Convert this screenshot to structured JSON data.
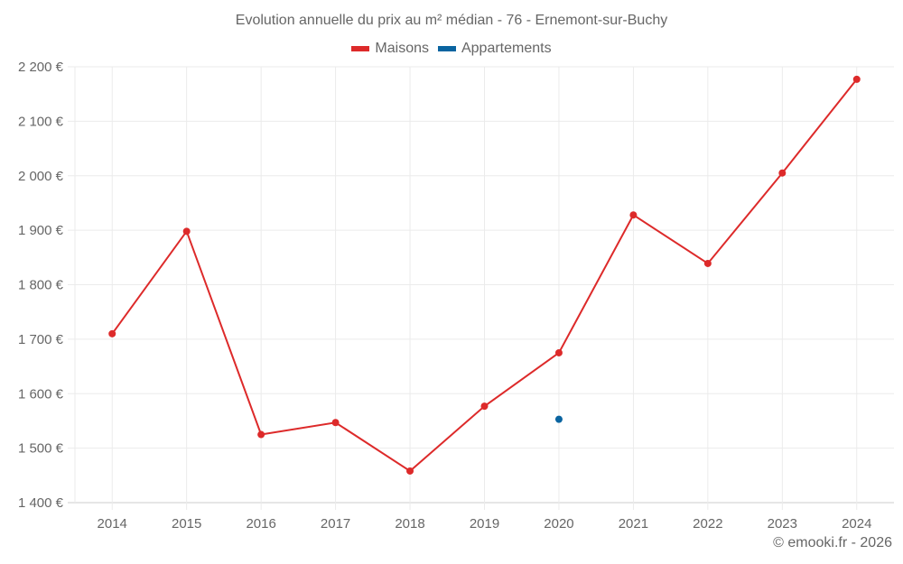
{
  "title": "Evolution annuelle du prix au m² médian - 76 - Ernemont-sur-Buchy",
  "legend": [
    {
      "label": "Maisons",
      "color": "#dd2a2a"
    },
    {
      "label": "Appartements",
      "color": "#0a64a0"
    }
  ],
  "credit": "© emooki.fr - 2026",
  "chart_data": {
    "type": "line",
    "title": "Evolution annuelle du prix au m² médian - 76 - Ernemont-sur-Buchy",
    "xlabel": "",
    "ylabel": "",
    "categories": [
      "2014",
      "2015",
      "2016",
      "2017",
      "2018",
      "2019",
      "2020",
      "2021",
      "2022",
      "2023",
      "2024"
    ],
    "series": [
      {
        "name": "Maisons",
        "color": "#dd2a2a",
        "values": [
          1710,
          1898,
          1525,
          1547,
          1458,
          1577,
          1675,
          1928,
          1839,
          2005,
          2177
        ]
      },
      {
        "name": "Appartements",
        "color": "#0a64a0",
        "values": [
          null,
          null,
          null,
          null,
          null,
          null,
          1553,
          null,
          null,
          null,
          null
        ]
      }
    ],
    "ylim": [
      1400,
      2200
    ],
    "yticks": [
      1400,
      1500,
      1600,
      1700,
      1800,
      1900,
      2000,
      2100,
      2200
    ],
    "ytick_labels": [
      "1 400 €",
      "1 500 €",
      "1 600 €",
      "1 700 €",
      "1 800 €",
      "1 900 €",
      "2 000 €",
      "2 100 €",
      "2 200 €"
    ],
    "grid": true,
    "legend_position": "top"
  }
}
